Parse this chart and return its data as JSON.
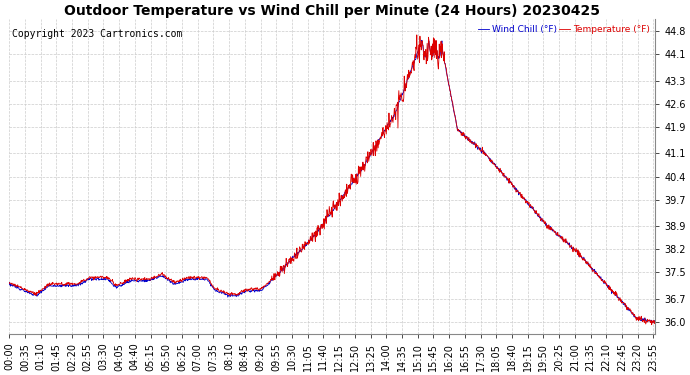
{
  "title": "Outdoor Temperature vs Wind Chill per Minute (24 Hours) 20230425",
  "copyright": "Copyright 2023 Cartronics.com",
  "legend_wind_chill": "Wind Chill (°F)",
  "legend_temperature": "Temperature (°F)",
  "background_color": "#ffffff",
  "plot_bg_color": "#ffffff",
  "grid_color": "#cccccc",
  "line_color_wind_chill": "#0000cc",
  "line_color_temperature": "#dd0000",
  "y_ticks": [
    36.0,
    36.7,
    37.5,
    38.2,
    38.9,
    39.7,
    40.4,
    41.1,
    41.9,
    42.6,
    43.3,
    44.1,
    44.8
  ],
  "y_min": 35.65,
  "y_max": 45.15,
  "title_fontsize": 10,
  "tick_fontsize": 7,
  "copyright_fontsize": 7,
  "x_tick_step": 35
}
